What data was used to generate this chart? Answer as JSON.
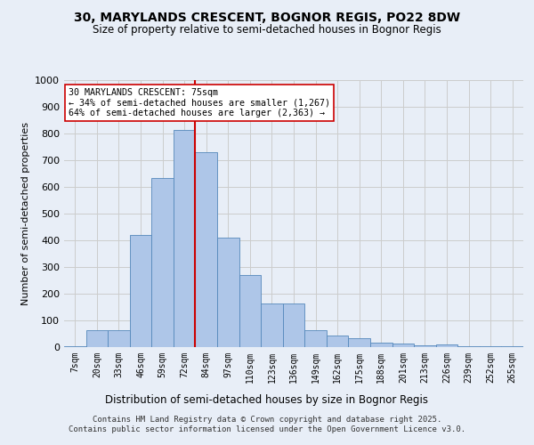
{
  "title": "30, MARYLANDS CRESCENT, BOGNOR REGIS, PO22 8DW",
  "subtitle": "Size of property relative to semi-detached houses in Bognor Regis",
  "xlabel": "Distribution of semi-detached houses by size in Bognor Regis",
  "ylabel": "Number of semi-detached properties",
  "categories": [
    "7sqm",
    "20sqm",
    "33sqm",
    "46sqm",
    "59sqm",
    "72sqm",
    "84sqm",
    "97sqm",
    "110sqm",
    "123sqm",
    "136sqm",
    "149sqm",
    "162sqm",
    "175sqm",
    "188sqm",
    "201sqm",
    "213sqm",
    "226sqm",
    "239sqm",
    "252sqm",
    "265sqm"
  ],
  "values": [
    5,
    65,
    65,
    420,
    635,
    815,
    730,
    410,
    270,
    165,
    165,
    65,
    42,
    35,
    18,
    15,
    7,
    10,
    2,
    2,
    5
  ],
  "bar_color": "#aec6e8",
  "bar_edge_color": "#5588bb",
  "bar_width": 1.0,
  "property_label": "30 MARYLANDS CRESCENT: 75sqm",
  "pct_smaller": 34,
  "pct_larger": 64,
  "n_smaller": 1267,
  "n_larger": 2363,
  "vline_color": "#cc0000",
  "vline_x": 5.5,
  "annotation_box_color": "#ffffff",
  "annotation_box_edge": "#cc0000",
  "ylim": [
    0,
    1000
  ],
  "yticks": [
    0,
    100,
    200,
    300,
    400,
    500,
    600,
    700,
    800,
    900,
    1000
  ],
  "grid_color": "#cccccc",
  "bg_color": "#e8eef7",
  "footer_line1": "Contains HM Land Registry data © Crown copyright and database right 2025.",
  "footer_line2": "Contains public sector information licensed under the Open Government Licence v3.0."
}
